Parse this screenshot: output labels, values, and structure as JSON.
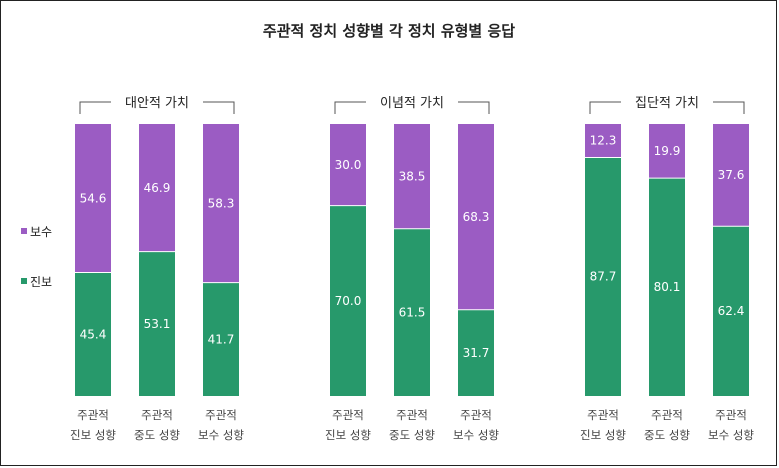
{
  "chart_data": {
    "type": "bar",
    "stacked": true,
    "title": "주관적 정치 성향별 각 정치 유형별 응답",
    "ylim": [
      0,
      100
    ],
    "grid": false,
    "legend_position": "left",
    "categories": [
      [
        "주관적",
        "진보 성향"
      ],
      [
        "주관적",
        "중도 성향"
      ],
      [
        "주관적",
        "보수 성향"
      ]
    ],
    "groups": [
      {
        "label": "대안적 가치",
        "series": [
          {
            "name": "진보",
            "color": "#27996B",
            "values": [
              45.4,
              53.1,
              41.7
            ]
          },
          {
            "name": "보수",
            "color": "#9B5CC3",
            "values": [
              54.6,
              46.9,
              58.3
            ]
          }
        ]
      },
      {
        "label": "이념적 가치",
        "series": [
          {
            "name": "진보",
            "color": "#27996B",
            "values": [
              70.0,
              61.5,
              31.7
            ]
          },
          {
            "name": "보수",
            "color": "#9B5CC3",
            "values": [
              30.0,
              38.5,
              68.3
            ]
          }
        ]
      },
      {
        "label": "집단적 가치",
        "series": [
          {
            "name": "진보",
            "color": "#27996B",
            "values": [
              87.7,
              80.1,
              62.4
            ]
          },
          {
            "name": "보수",
            "color": "#9B5CC3",
            "values": [
              12.3,
              19.9,
              37.6
            ]
          }
        ]
      }
    ],
    "legend": [
      {
        "name": "보수",
        "color": "#9B5CC3"
      },
      {
        "name": "진보",
        "color": "#27996B"
      }
    ]
  }
}
